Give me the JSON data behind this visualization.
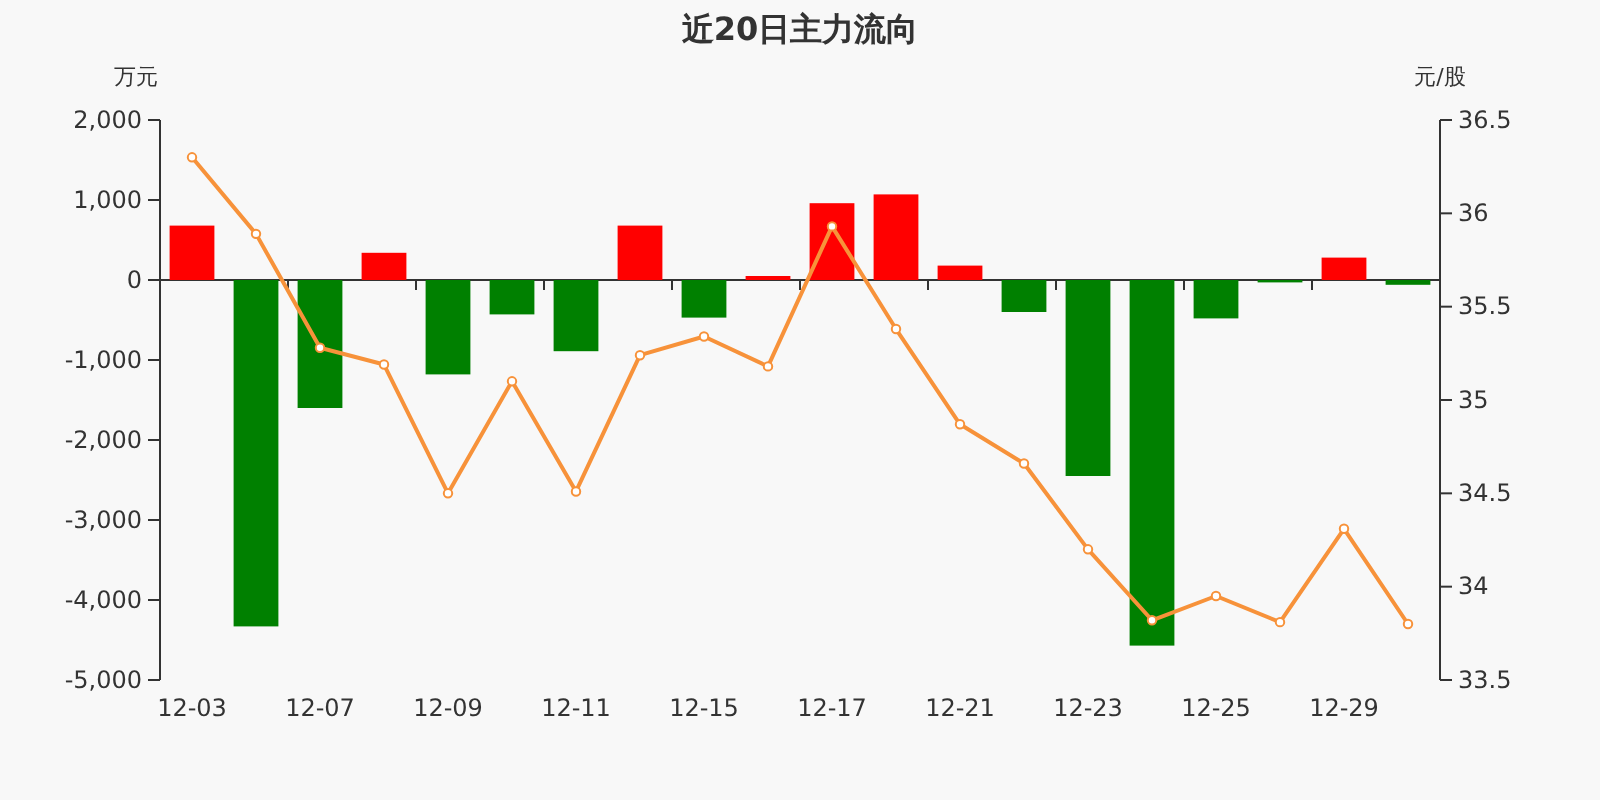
{
  "chart_data": {
    "type": "bar",
    "title": "近20日主力流向",
    "ylabel": "万元",
    "y2label": "元/股",
    "categories": [
      "12-03",
      null,
      "12-07",
      null,
      "12-09",
      null,
      "12-11",
      null,
      "12-15",
      null,
      "12-17",
      null,
      "12-21",
      null,
      "12-23",
      null,
      "12-25",
      null,
      "12-29",
      null
    ],
    "series": [
      {
        "values": [
          680,
          -4330,
          -1600,
          340,
          -1180,
          -430,
          -890,
          680,
          -470,
          50,
          960,
          1070,
          180,
          -400,
          -2450,
          -4570,
          -480,
          -30,
          280,
          -60
        ],
        "colors": [
          "#ff0000",
          "#008000",
          "#008000",
          "#ff0000",
          "#008000",
          "#008000",
          "#008000",
          "#ff0000",
          "#008000",
          "#ff0000",
          "#ff0000",
          "#ff0000",
          "#ff0000",
          "#008000",
          "#008000",
          "#008000",
          "#008000",
          "#008000",
          "#ff0000",
          "#008000"
        ]
      },
      {
        "type": "line",
        "axis": "y2",
        "color": "#f7923a",
        "values": [
          36.3,
          35.89,
          35.28,
          35.19,
          34.5,
          35.1,
          34.51,
          35.24,
          35.34,
          35.18,
          35.93,
          35.38,
          34.87,
          34.66,
          34.2,
          33.82,
          33.95,
          33.81,
          34.31,
          33.8
        ]
      }
    ],
    "ylim": [
      -5000,
      2000
    ],
    "yticks": [
      {
        "value": -5000,
        "label": "-5,000"
      },
      {
        "value": -4000,
        "label": "-4,000"
      },
      {
        "value": -3000,
        "label": "-3,000"
      },
      {
        "value": -2000,
        "label": "-2,000"
      },
      {
        "value": -1000,
        "label": "-1,000"
      },
      0,
      {
        "value": 1000,
        "label": "1,000"
      },
      {
        "value": 2000,
        "label": "2,000"
      }
    ],
    "y2lim": [
      33.5,
      36.5
    ],
    "y2ticks": [
      33.5,
      34,
      34.5,
      35,
      35.5,
      36,
      36.5
    ],
    "marker": "circle",
    "line_style": "solid"
  }
}
